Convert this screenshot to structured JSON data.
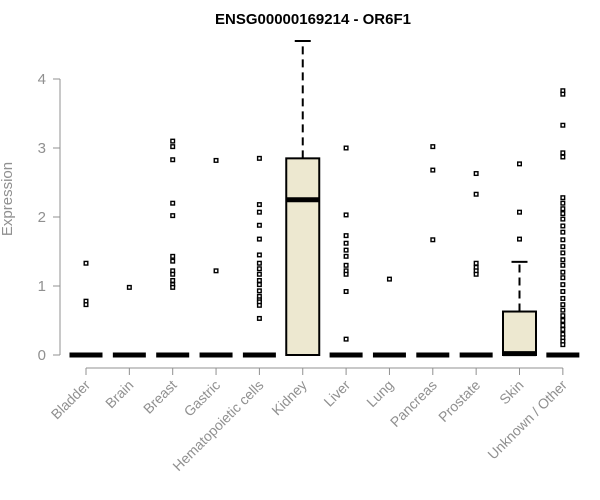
{
  "chart_data": {
    "type": "boxplot",
    "title": "ENSG00000169214 - OR6F1",
    "ylabel": "Expression",
    "xlabel": "",
    "ylim": [
      0,
      4.5
    ],
    "yticks": [
      0,
      1,
      2,
      3,
      4
    ],
    "grid": false,
    "legend": "none",
    "categories": [
      "Bladder",
      "Brain",
      "Breast",
      "Gastric",
      "Hematopoietic cells",
      "Kidney",
      "Liver",
      "Lung",
      "Pancreas",
      "Prostate",
      "Skin",
      "Unknown / Other"
    ],
    "boxes": [
      {
        "category": "Bladder",
        "q1": 0,
        "median": 0,
        "q3": 0,
        "whisker_low": 0,
        "whisker_high": 0,
        "outliers": [
          1.33,
          0.78,
          0.73
        ]
      },
      {
        "category": "Brain",
        "q1": 0,
        "median": 0,
        "q3": 0,
        "whisker_low": 0,
        "whisker_high": 0,
        "outliers": [
          0.98
        ]
      },
      {
        "category": "Breast",
        "q1": 0,
        "median": 0,
        "q3": 0,
        "whisker_low": 0,
        "whisker_high": 0,
        "outliers": [
          3.1,
          3.02,
          2.83,
          2.2,
          2.02,
          1.43,
          1.36,
          1.22,
          1.17,
          1.08,
          1.02,
          0.98
        ]
      },
      {
        "category": "Gastric",
        "q1": 0,
        "median": 0,
        "q3": 0,
        "whisker_low": 0,
        "whisker_high": 0,
        "outliers": [
          2.82,
          1.22
        ]
      },
      {
        "category": "Hematopoietic cells",
        "q1": 0,
        "median": 0,
        "q3": 0,
        "whisker_low": 0,
        "whisker_high": 0,
        "outliers": [
          2.85,
          2.18,
          2.07,
          1.88,
          1.68,
          1.45,
          1.33,
          1.25,
          1.17,
          1.08,
          1.02,
          0.93,
          0.85,
          0.8,
          0.77,
          0.72,
          0.53
        ]
      },
      {
        "category": "Kidney",
        "q1": 0,
        "median": 2.25,
        "q3": 2.85,
        "whisker_low": 0,
        "whisker_high": 4.55,
        "outliers": []
      },
      {
        "category": "Liver",
        "q1": 0,
        "median": 0,
        "q3": 0,
        "whisker_low": 0,
        "whisker_high": 0,
        "outliers": [
          3.0,
          2.03,
          1.73,
          1.62,
          1.52,
          1.43,
          1.3,
          1.22,
          1.17,
          0.92,
          0.23
        ]
      },
      {
        "category": "Lung",
        "q1": 0,
        "median": 0,
        "q3": 0,
        "whisker_low": 0,
        "whisker_high": 0,
        "outliers": [
          1.1
        ]
      },
      {
        "category": "Pancreas",
        "q1": 0,
        "median": 0,
        "q3": 0,
        "whisker_low": 0,
        "whisker_high": 0,
        "outliers": [
          3.02,
          2.68,
          1.67
        ]
      },
      {
        "category": "Prostate",
        "q1": 0,
        "median": 0,
        "q3": 0,
        "whisker_low": 0,
        "whisker_high": 0,
        "outliers": [
          2.63,
          2.33,
          1.33,
          1.27,
          1.22,
          1.17
        ]
      },
      {
        "category": "Skin",
        "q1": 0,
        "median": 0.02,
        "q3": 0.63,
        "whisker_low": 0,
        "whisker_high": 1.35,
        "outliers": [
          2.77,
          2.07,
          1.68
        ]
      },
      {
        "category": "Unknown / Other",
        "q1": 0,
        "median": 0,
        "q3": 0,
        "whisker_low": 0,
        "whisker_high": 0,
        "outliers": [
          3.83,
          3.78,
          3.33,
          2.93,
          2.87,
          2.28,
          2.2,
          2.12,
          2.05,
          1.97,
          1.87,
          1.78,
          1.67,
          1.57,
          1.48,
          1.38,
          1.3,
          1.2,
          1.12,
          1.02,
          0.92,
          0.82,
          0.73,
          0.65,
          0.57,
          0.5,
          0.43,
          0.37,
          0.3,
          0.25,
          0.2,
          0.15
        ]
      }
    ],
    "colors": {
      "box_fill": "#ede8d0",
      "box_stroke": "#000000",
      "axis": "#909090",
      "title": "#000000"
    }
  }
}
